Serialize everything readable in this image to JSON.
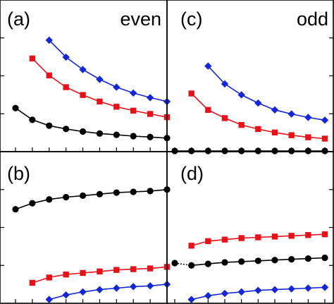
{
  "figure": {
    "panels": [
      {
        "id": "a",
        "letter": "(a)",
        "tag": "even"
      },
      {
        "id": "b",
        "letter": "(b)",
        "tag": ""
      },
      {
        "id": "c",
        "letter": "(c)",
        "tag": "odd"
      },
      {
        "id": "d",
        "letter": "(d)",
        "tag": ""
      }
    ]
  },
  "colors": {
    "black": "#000000",
    "red": "#e8111a",
    "blue": "#1427d6"
  },
  "chart_data": [
    {
      "panel": "a",
      "type": "line",
      "title": "",
      "xlabel": "",
      "ylabel": "",
      "tag": "even",
      "xlim": [
        0,
        9
      ],
      "ylim": [
        0,
        1
      ],
      "grid": false,
      "legend": "none",
      "series": [
        {
          "color": "#000000",
          "marker": "circle",
          "x": [
            0,
            1,
            2,
            3,
            4,
            5,
            6,
            7,
            8,
            9
          ],
          "y": [
            0.28,
            0.19,
            0.145,
            0.12,
            0.1,
            0.085,
            0.075,
            0.065,
            0.058,
            0.05
          ]
        },
        {
          "color": "#e8111a",
          "marker": "square",
          "x": [
            1,
            2,
            3,
            4,
            5,
            6,
            7,
            8,
            9
          ],
          "y": [
            0.66,
            0.53,
            0.44,
            0.38,
            0.33,
            0.29,
            0.26,
            0.235,
            0.21
          ]
        },
        {
          "color": "#1427d6",
          "marker": "diamond",
          "x": [
            2,
            3,
            4,
            5,
            6,
            7,
            8,
            9
          ],
          "y": [
            0.8,
            0.67,
            0.575,
            0.5,
            0.44,
            0.395,
            0.36,
            0.33
          ]
        }
      ]
    },
    {
      "panel": "b",
      "type": "line",
      "title": "",
      "xlabel": "",
      "ylabel": "",
      "xlim": [
        0,
        9
      ],
      "ylim": [
        0,
        1
      ],
      "grid": false,
      "legend": "none",
      "series": [
        {
          "color": "#000000",
          "marker": "circle",
          "x": [
            0,
            1,
            2,
            3,
            4,
            5,
            6,
            7,
            8,
            9
          ],
          "y": [
            0.62,
            0.66,
            0.685,
            0.7,
            0.71,
            0.72,
            0.73,
            0.735,
            0.74,
            0.75
          ]
        },
        {
          "color": "#e8111a",
          "marker": "square",
          "x": [
            1,
            2,
            3,
            4,
            5,
            6,
            7,
            8,
            9
          ],
          "y": [
            0.135,
            0.17,
            0.19,
            0.2,
            0.21,
            0.22,
            0.225,
            0.23,
            0.24
          ]
        },
        {
          "color": "#1427d6",
          "marker": "diamond",
          "x": [
            2,
            3,
            4,
            5,
            6,
            7,
            8,
            9
          ],
          "y": [
            0.025,
            0.055,
            0.075,
            0.09,
            0.1,
            0.11,
            0.115,
            0.125
          ]
        }
      ]
    },
    {
      "panel": "c",
      "type": "line",
      "title": "",
      "xlabel": "",
      "ylabel": "",
      "tag": "odd",
      "xlim": [
        0,
        9
      ],
      "ylim": [
        0,
        1
      ],
      "grid": false,
      "legend": "none",
      "series": [
        {
          "color": "#000000",
          "marker": "circle",
          "x": [
            0,
            1,
            2,
            3,
            4,
            5,
            6,
            7,
            8,
            9
          ],
          "y": [
            0,
            0,
            0,
            0,
            0,
            0,
            0,
            0,
            0,
            0
          ]
        },
        {
          "color": "#e8111a",
          "marker": "square",
          "x": [
            1,
            2,
            3,
            4,
            5,
            6,
            7,
            8,
            9
          ],
          "y": [
            0.42,
            0.3,
            0.24,
            0.19,
            0.16,
            0.135,
            0.115,
            0.1,
            0.09
          ]
        },
        {
          "color": "#1427d6",
          "marker": "diamond",
          "x": [
            2,
            3,
            4,
            5,
            6,
            7,
            8,
            9
          ],
          "y": [
            0.62,
            0.49,
            0.41,
            0.35,
            0.3,
            0.27,
            0.245,
            0.225
          ]
        }
      ]
    },
    {
      "panel": "d",
      "type": "line",
      "title": "",
      "xlabel": "",
      "ylabel": "",
      "xlim": [
        0,
        9
      ],
      "ylim": [
        0,
        1
      ],
      "grid": false,
      "legend": "none",
      "series": [
        {
          "color": "#000000",
          "marker": "circle",
          "x": [
            0,
            1,
            2,
            3,
            4,
            5,
            6,
            7,
            8,
            9
          ],
          "y": [
            0.265,
            0.25,
            0.26,
            0.27,
            0.275,
            0.28,
            0.285,
            0.29,
            0.295,
            0.3
          ],
          "dotted_first_segment": true
        },
        {
          "color": "#e8111a",
          "marker": "square",
          "x": [
            1,
            2,
            3,
            4,
            5,
            6,
            7,
            8,
            9
          ],
          "y": [
            0.38,
            0.41,
            0.42,
            0.43,
            0.435,
            0.44,
            0.445,
            0.45,
            0.455
          ]
        },
        {
          "color": "#1427d6",
          "marker": "diamond",
          "x": [
            1,
            2,
            3,
            4,
            5,
            6,
            7,
            8,
            9
          ],
          "y": [
            0.025,
            0.05,
            0.065,
            0.075,
            0.085,
            0.09,
            0.095,
            0.1,
            0.105
          ]
        }
      ]
    }
  ]
}
